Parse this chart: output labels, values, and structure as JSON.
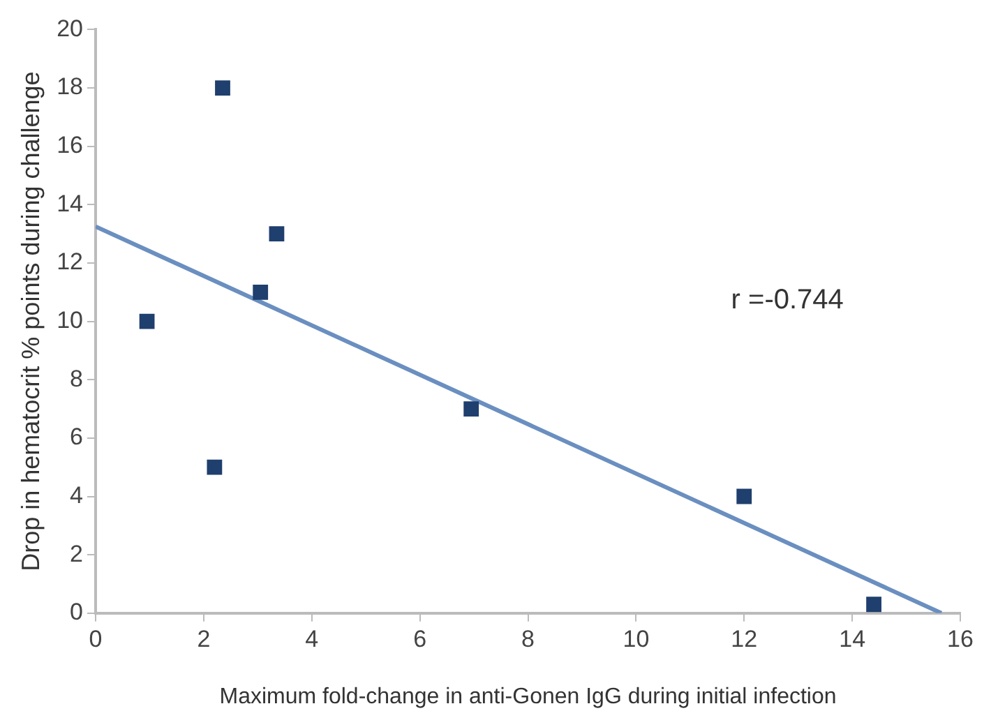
{
  "chart_data": {
    "type": "scatter",
    "xlabel": "Maximum fold-change in anti-Gonen IgG during initial infection",
    "ylabel": "Drop in hematocrit % points during challenge",
    "xlim": [
      0,
      16
    ],
    "xticks": [
      0,
      2,
      4,
      6,
      8,
      10,
      12,
      14,
      16
    ],
    "ylim": [
      0,
      20
    ],
    "yticks": [
      0,
      2,
      4,
      6,
      8,
      10,
      12,
      14,
      16,
      18,
      20
    ],
    "grid": false,
    "legend": false,
    "annotations": [
      "r =-0.744"
    ],
    "series": [
      {
        "type": "scatter",
        "marker": "square",
        "color": "#1f3f6e",
        "x": [
          0.95,
          2.2,
          2.35,
          3.05,
          3.35,
          6.95,
          12,
          14.4
        ],
        "values": [
          10,
          5,
          18,
          11,
          13,
          7,
          4,
          0.3
        ]
      },
      {
        "type": "line",
        "marker": "none",
        "color": "#6a8fc0",
        "x": [
          0,
          15.65
        ],
        "values": [
          13.25,
          0
        ]
      }
    ]
  }
}
